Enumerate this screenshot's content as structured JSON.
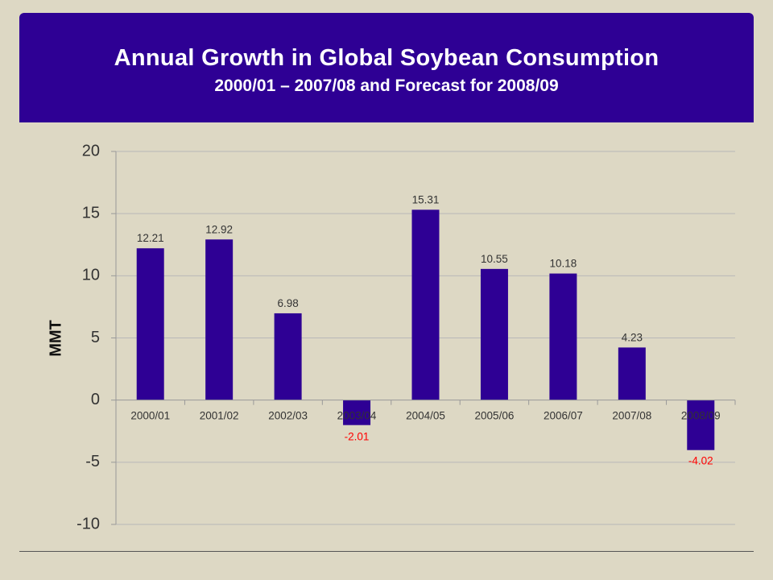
{
  "chart_data": {
    "type": "bar",
    "title": "Annual Growth in Global Soybean Consumption",
    "subtitle": "2000/01 – 2007/08 and Forecast for 2008/09",
    "xlabel": "",
    "ylabel": "MMT",
    "ylim": [
      -10,
      20
    ],
    "yticks": [
      20,
      15,
      10,
      5,
      0,
      -5,
      -10
    ],
    "grid": true,
    "categories": [
      "2000/01",
      "2001/02",
      "2002/03",
      "2003/04",
      "2004/05",
      "2005/06",
      "2006/07",
      "2007/08",
      "2008/09"
    ],
    "values": [
      12.21,
      12.92,
      6.98,
      -2.01,
      15.31,
      10.55,
      10.18,
      4.23,
      -4.02
    ],
    "data_labels": [
      "12.21",
      "12.92",
      "6.98",
      "-2.01",
      "15.31",
      "10.55",
      "10.18",
      "4.23",
      "-4.02"
    ],
    "colors": {
      "bar": "#2e0094",
      "positive_label": "#333333",
      "negative_label": "#ff0000",
      "grid": "#b8b8b8",
      "header_bg": "#2e0094"
    }
  }
}
